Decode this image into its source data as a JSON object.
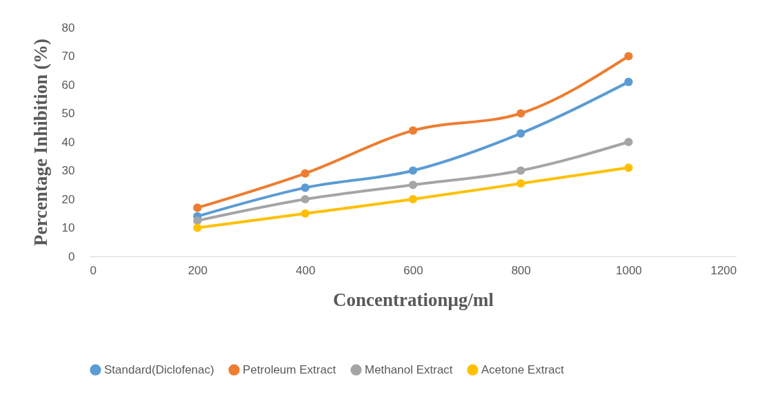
{
  "chart_data": {
    "type": "line",
    "xlabel": "Concentrationµg/ml",
    "ylabel": "Percentage Inhibition (%)",
    "x": [
      200,
      400,
      600,
      800,
      1000
    ],
    "series": [
      {
        "name": "Standard(Diclofenac)",
        "color": "#5b9bd5",
        "values": [
          14,
          24,
          30,
          43,
          61
        ]
      },
      {
        "name": "Petroleum Extract",
        "color": "#ed7d31",
        "values": [
          17,
          29,
          44,
          50,
          70
        ]
      },
      {
        "name": "Methanol Extract",
        "color": "#a5a5a5",
        "values": [
          12.5,
          20,
          25,
          30,
          40
        ]
      },
      {
        "name": "Acetone Extract",
        "color": "#ffc000",
        "values": [
          10,
          15,
          20,
          25.5,
          31
        ]
      }
    ],
    "xlim": [
      0,
      1200
    ],
    "xticks": [
      0,
      200,
      400,
      600,
      800,
      1000,
      1200
    ],
    "ylim": [
      0,
      80
    ],
    "yticks": [
      0,
      10,
      20,
      30,
      40,
      50,
      60,
      70,
      80
    ],
    "grid": false,
    "legend": "bottom",
    "marker": "circle",
    "line_style": "solid"
  }
}
